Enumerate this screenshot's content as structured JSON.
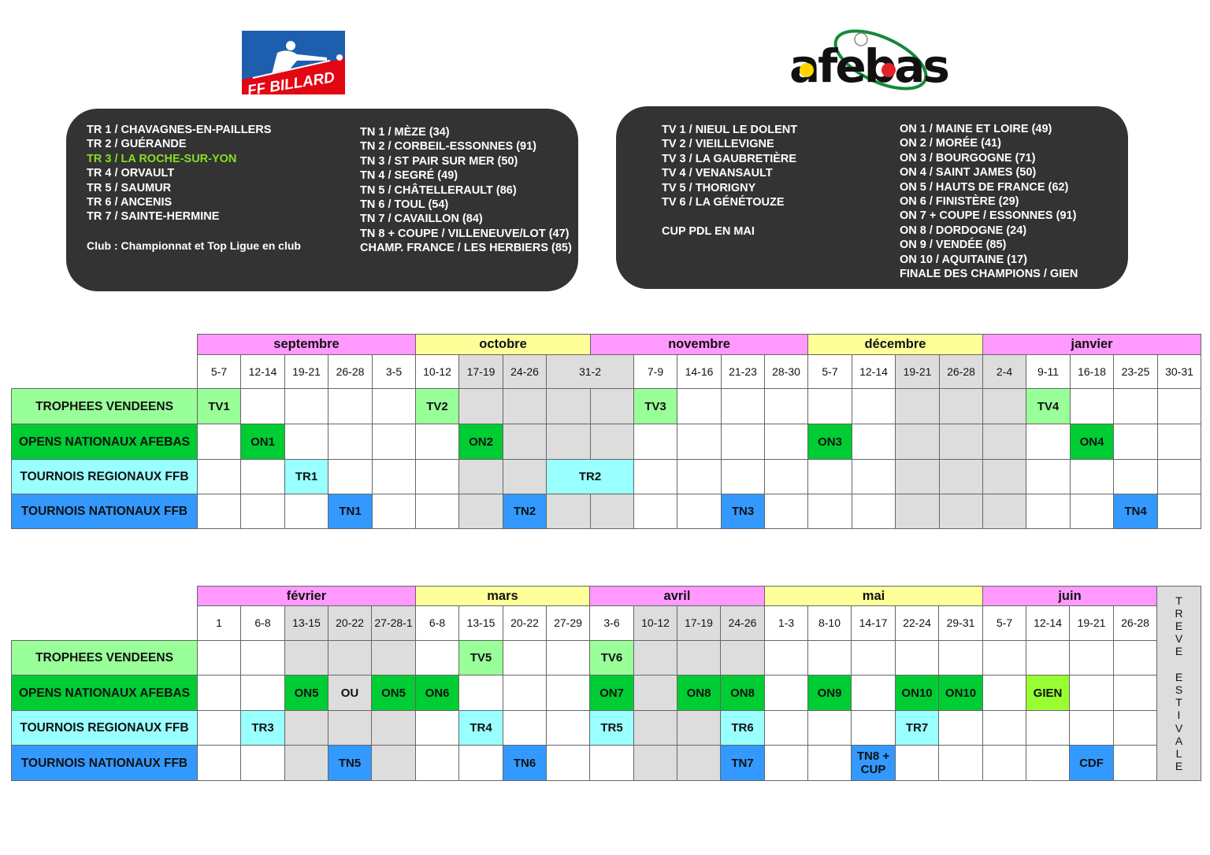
{
  "logos": {
    "ffb": "FF BILLARD",
    "afebas": "afebas"
  },
  "ffb_box": {
    "left": [
      "TR 1 / CHAVAGNES-EN-PAILLERS",
      "TR 2 / GUÉRANDE",
      "TR 3 / LA ROCHE-SUR-YON",
      "TR 4 / ORVAULT",
      "TR 5 / SAUMUR",
      "TR 6 / ANCENIS",
      "TR 7 / SAINTE-HERMINE",
      "",
      "Club : Championnat et Top Ligue en club"
    ],
    "highlight_index": 2,
    "highlight_color": "#88dd22",
    "right": [
      "TN 1 / MÈZE (34)",
      "TN 2 /  CORBEIL-ESSONNES (91)",
      "TN 3 / ST PAIR SUR MER (50)",
      "TN 4 / SEGRÉ (49)",
      "TN 5 / CHÂTELLERAULT (86)",
      "TN 6 / TOUL (54)",
      "TN 7 /  CAVAILLON (84)",
      "TN 8 + COUPE / VILLENEUVE/LOT (47)",
      "CHAMP. FRANCE / LES HERBIERS (85)"
    ]
  },
  "afebas_box": {
    "left": [
      "TV 1 / NIEUL LE DOLENT",
      "TV 2 / VIEILLEVIGNE",
      "TV 3 / LA GAUBRETIÈRE",
      "TV 4 / VENANSAULT",
      "TV 5 / THORIGNY",
      "TV 6 / LA GÉNÉTOUZE",
      "",
      "CUP PDL EN MAI"
    ],
    "right": [
      "ON 1 / MAINE ET LOIRE (49)",
      "ON 2 / MORÉE (41)",
      "ON 3 / BOURGOGNE (71)",
      "ON 4 / SAINT JAMES (50)",
      "ON 5 / HAUTS DE FRANCE (62)",
      "ON 6 / FINISTÈRE (29)",
      "ON 7 + COUPE / ESSONNES (91)",
      "ON 8 / DORDOGNE (24)",
      "ON 9 / VENDÉE (85)",
      "ON 10 / AQUITAINE (17)",
      "FINALE DES CHAMPIONS / GIEN"
    ]
  },
  "colors": {
    "month_pink": "#ff99ff",
    "month_yellow": "#ffff99",
    "TV": "#99ff99",
    "ON": "#00cc33",
    "TR": "#99ffff",
    "TN": "#3399ff",
    "GIEN": "#99ff33",
    "holiday": "#dddddd"
  },
  "row_labels": [
    {
      "label": "TROPHEES VENDEENS",
      "type": "TV"
    },
    {
      "label": "OPENS NATIONAUX AFEBAS",
      "type": "ON"
    },
    {
      "label": "TOURNOIS REGIONAUX FFB",
      "type": "TR"
    },
    {
      "label": "TOURNOIS NATIONAUX FFB",
      "type": "TN"
    }
  ],
  "tables": [
    {
      "months": [
        {
          "name": "septembre",
          "cols": 5,
          "color": "month_pink"
        },
        {
          "name": "octobre",
          "cols": 4,
          "color": "month_yellow"
        },
        {
          "name": "novembre",
          "cols": 5,
          "color": "month_pink"
        },
        {
          "name": "décembre",
          "cols": 4,
          "color": "month_yellow"
        },
        {
          "name": "janvier",
          "cols": 5,
          "color": "month_pink"
        }
      ],
      "dates": [
        {
          "label": "5-7"
        },
        {
          "label": "12-14"
        },
        {
          "label": "19-21"
        },
        {
          "label": "26-28"
        },
        {
          "label": "3-5"
        },
        {
          "label": "10-12"
        },
        {
          "label": "17-19",
          "holiday": true
        },
        {
          "label": "24-26",
          "holiday": true
        },
        {
          "label": "31-2",
          "holiday": true,
          "span": 2
        },
        {
          "label": "7-9"
        },
        {
          "label": "14-16"
        },
        {
          "label": "21-23"
        },
        {
          "label": "28-30"
        },
        {
          "label": "5-7"
        },
        {
          "label": "12-14"
        },
        {
          "label": "19-21",
          "holiday": true
        },
        {
          "label": "26-28",
          "holiday": true
        },
        {
          "label": "2-4",
          "holiday": true
        },
        {
          "label": "9-11"
        },
        {
          "label": "16-18"
        },
        {
          "label": "23-25"
        },
        {
          "label": "30-31"
        }
      ],
      "events": [
        {
          "row": 0,
          "col": 0,
          "text": "TV1",
          "type": "TV"
        },
        {
          "row": 0,
          "col": 5,
          "text": "TV2",
          "type": "TV"
        },
        {
          "row": 0,
          "col": 10,
          "text": "TV3",
          "type": "TV"
        },
        {
          "row": 0,
          "col": 19,
          "text": "TV4",
          "type": "TV"
        },
        {
          "row": 1,
          "col": 1,
          "text": "ON1",
          "type": "ON"
        },
        {
          "row": 1,
          "col": 6,
          "text": "ON2",
          "type": "ON"
        },
        {
          "row": 1,
          "col": 14,
          "text": "ON3",
          "type": "ON"
        },
        {
          "row": 1,
          "col": 20,
          "text": "ON4",
          "type": "ON"
        },
        {
          "row": 2,
          "col": 2,
          "text": "TR1",
          "type": "TR"
        },
        {
          "row": 2,
          "col": 8,
          "text": "TR2",
          "type": "TR",
          "span": 2
        },
        {
          "row": 3,
          "col": 3,
          "text": "TN1",
          "type": "TN"
        },
        {
          "row": 3,
          "col": 7,
          "text": "TN2",
          "type": "TN"
        },
        {
          "row": 3,
          "col": 12,
          "text": "TN3",
          "type": "TN"
        },
        {
          "row": 3,
          "col": 21,
          "text": "TN4",
          "type": "TN"
        }
      ]
    },
    {
      "months": [
        {
          "name": "février",
          "cols": 5,
          "color": "month_pink"
        },
        {
          "name": "mars",
          "cols": 4,
          "color": "month_yellow"
        },
        {
          "name": "avril",
          "cols": 4,
          "color": "month_pink"
        },
        {
          "name": "mai",
          "cols": 5,
          "color": "month_yellow"
        },
        {
          "name": "juin",
          "cols": 4,
          "color": "month_pink"
        }
      ],
      "dates": [
        {
          "label": "1"
        },
        {
          "label": "6-8"
        },
        {
          "label": "13-15",
          "holiday": true
        },
        {
          "label": "20-22",
          "holiday": true
        },
        {
          "label": "27-28-1",
          "holiday": true
        },
        {
          "label": "6-8"
        },
        {
          "label": "13-15"
        },
        {
          "label": "20-22"
        },
        {
          "label": "27-29"
        },
        {
          "label": "3-6"
        },
        {
          "label": "10-12",
          "holiday": true
        },
        {
          "label": "17-19",
          "holiday": true
        },
        {
          "label": "24-26",
          "holiday": true
        },
        {
          "label": "1-3"
        },
        {
          "label": "8-10"
        },
        {
          "label": "14-17"
        },
        {
          "label": "22-24"
        },
        {
          "label": "29-31"
        },
        {
          "label": "5-7"
        },
        {
          "label": "12-14"
        },
        {
          "label": "19-21"
        },
        {
          "label": "26-28"
        }
      ],
      "events": [
        {
          "row": 0,
          "col": 6,
          "text": "TV5",
          "type": "TV"
        },
        {
          "row": 0,
          "col": 9,
          "text": "TV6",
          "type": "TV"
        },
        {
          "row": 1,
          "col": 2,
          "text": "ON5",
          "type": "ON"
        },
        {
          "row": 1,
          "col": 3,
          "text": "OU",
          "type": ""
        },
        {
          "row": 1,
          "col": 4,
          "text": "ON5",
          "type": "ON"
        },
        {
          "row": 1,
          "col": 5,
          "text": "ON6",
          "type": "ON"
        },
        {
          "row": 1,
          "col": 9,
          "text": "ON7",
          "type": "ON"
        },
        {
          "row": 1,
          "col": 11,
          "text": "ON8",
          "type": "ON"
        },
        {
          "row": 1,
          "col": 12,
          "text": "ON8",
          "type": "ON"
        },
        {
          "row": 1,
          "col": 14,
          "text": "ON9",
          "type": "ON"
        },
        {
          "row": 1,
          "col": 16,
          "text": "ON10",
          "type": "ON"
        },
        {
          "row": 1,
          "col": 17,
          "text": "ON10",
          "type": "ON"
        },
        {
          "row": 1,
          "col": 19,
          "text": "GIEN",
          "type": "GIEN"
        },
        {
          "row": 2,
          "col": 1,
          "text": "TR3",
          "type": "TR"
        },
        {
          "row": 2,
          "col": 6,
          "text": "TR4",
          "type": "TR"
        },
        {
          "row": 2,
          "col": 9,
          "text": "TR5",
          "type": "TR"
        },
        {
          "row": 2,
          "col": 12,
          "text": "TR6",
          "type": "TR"
        },
        {
          "row": 2,
          "col": 16,
          "text": "TR7",
          "type": "TR"
        },
        {
          "row": 3,
          "col": 3,
          "text": "TN5",
          "type": "TN"
        },
        {
          "row": 3,
          "col": 7,
          "text": "TN6",
          "type": "TN"
        },
        {
          "row": 3,
          "col": 12,
          "text": "TN7",
          "type": "TN"
        },
        {
          "row": 3,
          "col": 15,
          "text": "TN8 + CUP",
          "type": "TN"
        },
        {
          "row": 3,
          "col": 20,
          "text": "CDF",
          "type": "TN"
        }
      ],
      "side_label": "TREVE ESTIVALE"
    }
  ]
}
